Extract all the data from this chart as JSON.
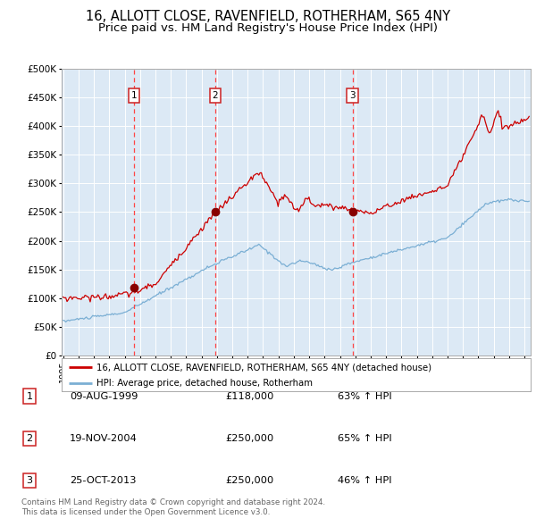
{
  "title": "16, ALLOTT CLOSE, RAVENFIELD, ROTHERHAM, S65 4NY",
  "subtitle": "Price paid vs. HM Land Registry's House Price Index (HPI)",
  "title_fontsize": 10.5,
  "subtitle_fontsize": 9.5,
  "plot_bg_color": "#dce9f5",
  "fig_bg_color": "#ffffff",
  "sale_prices": [
    118000,
    250000,
    250000
  ],
  "sale_labels": [
    "1",
    "2",
    "3"
  ],
  "vline_x": [
    1999.604,
    2004.883,
    2013.814
  ],
  "red_line_color": "#cc0000",
  "blue_line_color": "#7bafd4",
  "sale_marker_color": "#880000",
  "vline_color": "#ff4444",
  "table_entries": [
    {
      "num": "1",
      "date": "09-AUG-1999",
      "price": "£118,000",
      "change": "63% ↑ HPI"
    },
    {
      "num": "2",
      "date": "19-NOV-2004",
      "price": "£250,000",
      "change": "65% ↑ HPI"
    },
    {
      "num": "3",
      "date": "25-OCT-2013",
      "price": "£250,000",
      "change": "46% ↑ HPI"
    }
  ],
  "legend_entries": [
    "16, ALLOTT CLOSE, RAVENFIELD, ROTHERHAM, S65 4NY (detached house)",
    "HPI: Average price, detached house, Rotherham"
  ],
  "footer_text": "Contains HM Land Registry data © Crown copyright and database right 2024.\nThis data is licensed under the Open Government Licence v3.0."
}
